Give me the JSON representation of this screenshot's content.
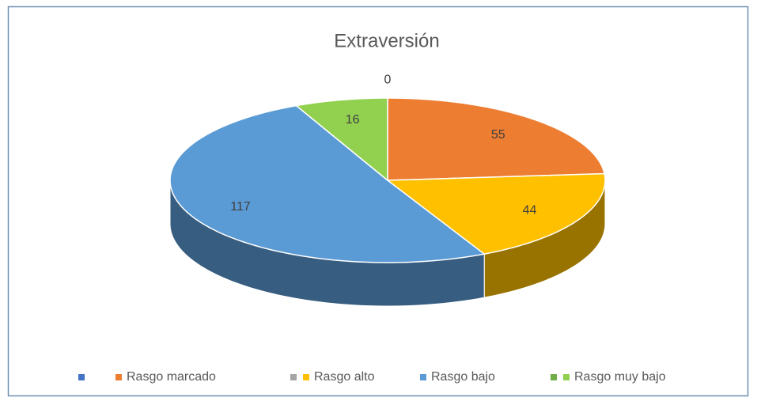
{
  "chart_data": {
    "type": "pie3d",
    "title": "Extraversión",
    "categories": [
      null,
      "Rasgo marcado",
      null,
      "Rasgo alto",
      "Rasgo bajo",
      null,
      "Rasgo muy bajo"
    ],
    "values": [
      0,
      55,
      null,
      44,
      117,
      null,
      16
    ],
    "colors": [
      "#4472c4",
      "#ed7d31",
      "#a5a5a5",
      "#ffc000",
      "#5b9bd5",
      "#70ad47",
      "#92d050"
    ],
    "legend": "bottom"
  }
}
